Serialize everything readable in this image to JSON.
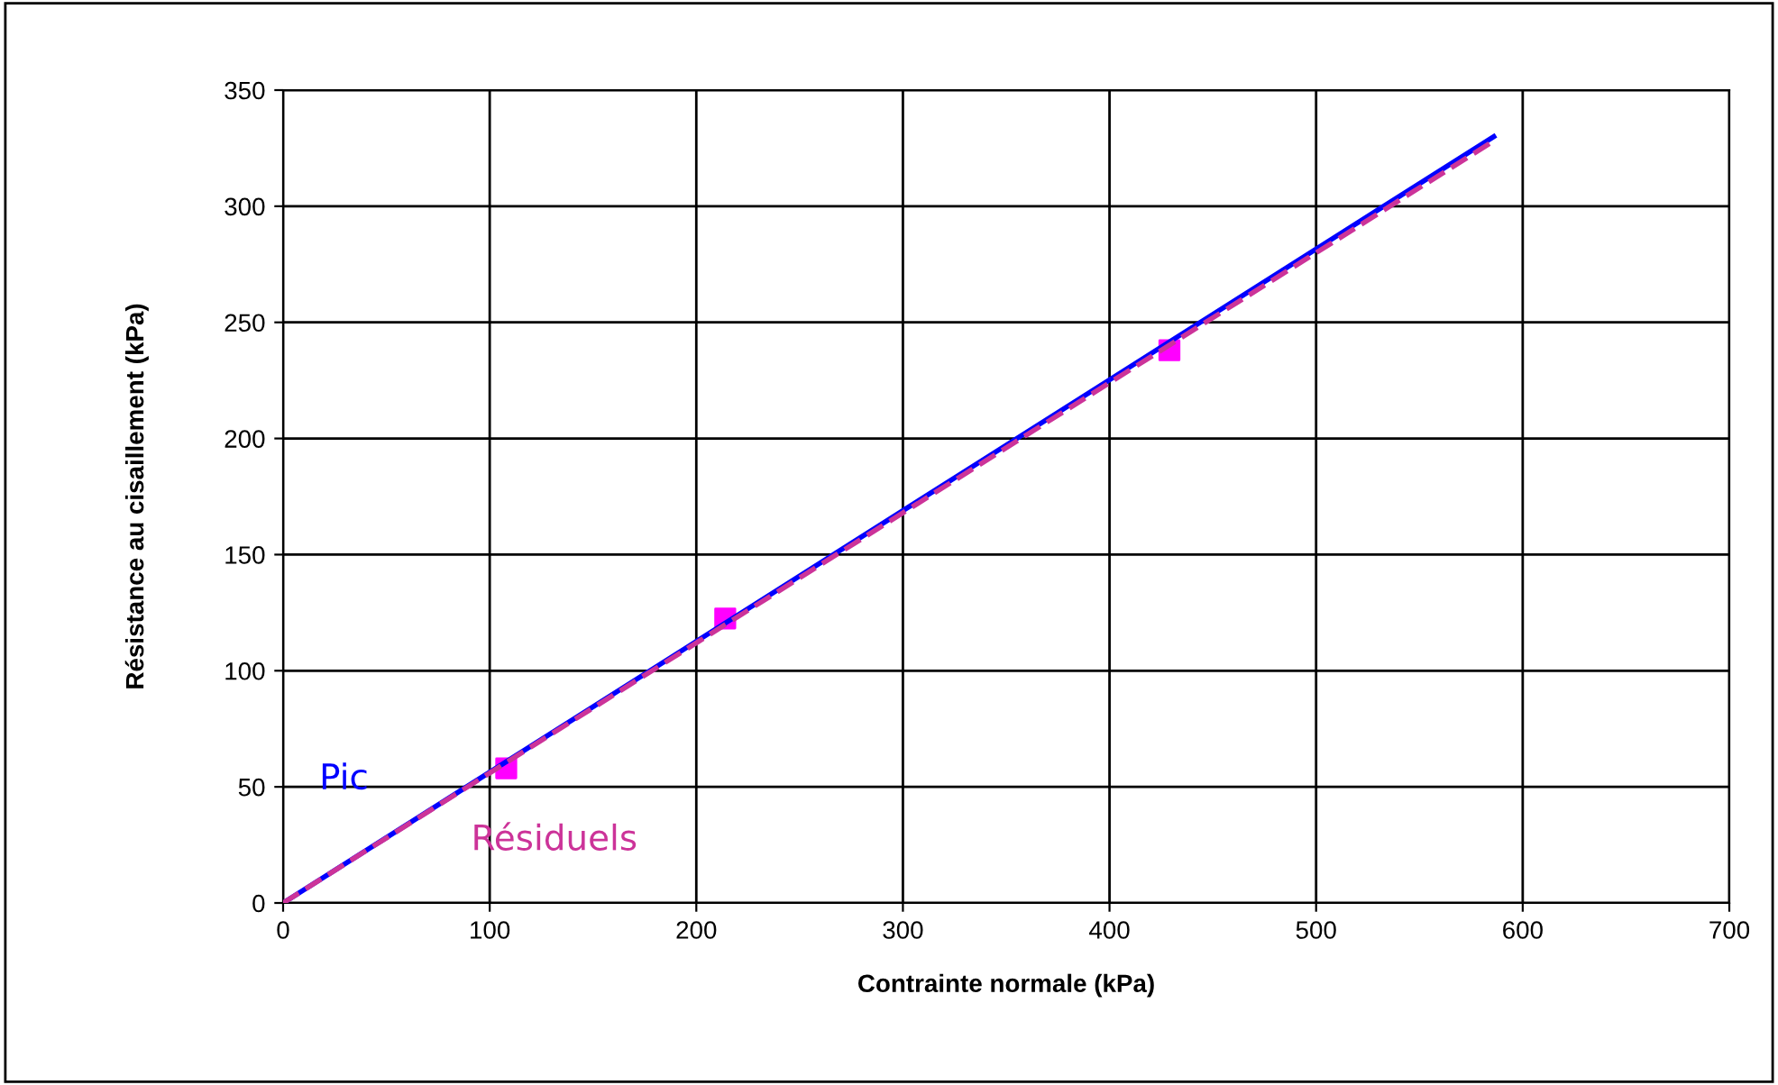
{
  "chart_data": {
    "type": "line",
    "xlabel": "Contrainte normale (kPa)",
    "ylabel": "Résistance au cisaillement (kPa)",
    "xlim": [
      0,
      700
    ],
    "ylim": [
      0,
      350
    ],
    "xticks": [
      0,
      100,
      200,
      300,
      400,
      500,
      600,
      700
    ],
    "yticks": [
      0,
      50,
      100,
      150,
      200,
      250,
      300,
      350
    ],
    "grid": true,
    "legend": false,
    "series": [
      {
        "name": "Pic",
        "color": "#0000ff",
        "line_style": "solid",
        "marker": "none",
        "x": [
          0,
          586
        ],
        "values": [
          0,
          330
        ]
      },
      {
        "name": "Résiduels",
        "color": "#cc3399",
        "line_style": "dashed",
        "marker": "none",
        "x": [
          0,
          584
        ],
        "values": [
          0,
          327
        ]
      },
      {
        "type": "scatter",
        "color": "#ff00ff",
        "marker": "square",
        "x": [
          108,
          214,
          429
        ],
        "values": [
          58,
          122.5,
          238
        ]
      }
    ]
  }
}
